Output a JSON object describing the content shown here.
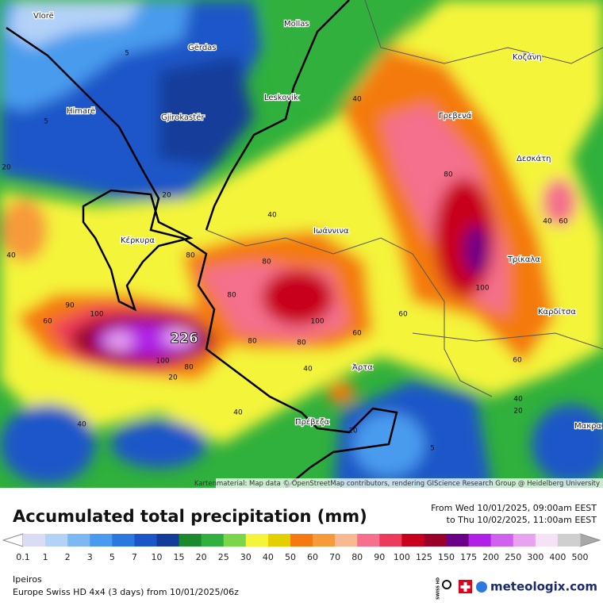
{
  "header": {
    "title": "Accumulated total precipitation (mm)",
    "period_from": "From Wed 10/01/2025, 09:00am EEST",
    "period_to": "to Thu 10/02/2025, 11:00am EEST"
  },
  "map": {
    "places": [
      "Vlorë",
      "Mollas",
      "Gërdas",
      "Leskovik",
      "Himarë",
      "Gjirokastër",
      "Κοζάνη",
      "Γρεβενά",
      "Δεσκάτη",
      "Κέρκυρα",
      "Ιωάννινα",
      "Τρίκαλα",
      "Καρδίτσα",
      "Άρτα",
      "Πρέβεζα",
      "Μακρα"
    ],
    "maximum": 226,
    "contour_labels": [
      5,
      5,
      20,
      40,
      20,
      40,
      80,
      40,
      60,
      40,
      80,
      80,
      80,
      100,
      90,
      100,
      60,
      100,
      80,
      60,
      60,
      80,
      100,
      80,
      20,
      40,
      60,
      40,
      20,
      40,
      40,
      20,
      5
    ],
    "attribution": "Kartenmaterial: Map data © OpenStreetMap contributors, rendering GIScience Research Group @ Heidelberg University"
  },
  "legend": {
    "ticks": [
      0.1,
      1,
      2,
      3,
      5,
      7,
      10,
      15,
      20,
      25,
      30,
      40,
      50,
      60,
      70,
      80,
      90,
      100,
      125,
      150,
      175,
      200,
      250,
      300,
      400,
      500
    ],
    "colors": [
      "#d9dcf5",
      "#b4d2f8",
      "#7cb9f4",
      "#4a9bee",
      "#2a78e0",
      "#1a56c8",
      "#123c9a",
      "#1c8a2c",
      "#30b03c",
      "#7ad64a",
      "#f4f43a",
      "#e4d000",
      "#f47a10",
      "#f79a3a",
      "#f8b890",
      "#f4708c",
      "#ee3a5a",
      "#c8001e",
      "#9a0028",
      "#6a0088",
      "#b020e8",
      "#d060f0",
      "#e8a2f0",
      "#f6e2f6",
      "#cfcfcf"
    ]
  },
  "footer": {
    "region": "Ipeiros",
    "model": "Europe Swiss HD 4x4 (3 days) from 10/01/2025/06z",
    "badge": "SWISS HD",
    "brand": "meteologix.com"
  }
}
